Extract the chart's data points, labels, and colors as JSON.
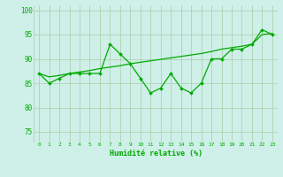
{
  "x": [
    0,
    1,
    2,
    3,
    4,
    5,
    6,
    7,
    8,
    9,
    10,
    11,
    12,
    13,
    14,
    15,
    16,
    17,
    18,
    19,
    20,
    21,
    22,
    23
  ],
  "y_line": [
    87,
    85,
    86,
    87,
    87,
    87,
    87,
    93,
    91,
    89,
    86,
    83,
    84,
    87,
    84,
    83,
    85,
    90,
    90,
    92,
    92,
    93,
    96,
    95
  ],
  "y_smooth": [
    87,
    86.3,
    86.6,
    87.0,
    87.3,
    87.6,
    88.0,
    88.3,
    88.6,
    89.0,
    89.3,
    89.6,
    89.9,
    90.2,
    90.5,
    90.8,
    91.1,
    91.5,
    92.0,
    92.3,
    92.6,
    93.0,
    95.0,
    95.2
  ],
  "bg_color": "#cef0e8",
  "line_color": "#00aa00",
  "grid_color": "#aaccaa",
  "xlabel": "Humidité relative (%)",
  "ylim": [
    73,
    101
  ],
  "xlim": [
    -0.5,
    23.5
  ],
  "yticks": [
    75,
    80,
    85,
    90,
    95,
    100
  ],
  "xticks": [
    0,
    1,
    2,
    3,
    4,
    5,
    6,
    7,
    8,
    9,
    10,
    11,
    12,
    13,
    14,
    15,
    16,
    17,
    18,
    19,
    20,
    21,
    22,
    23
  ]
}
